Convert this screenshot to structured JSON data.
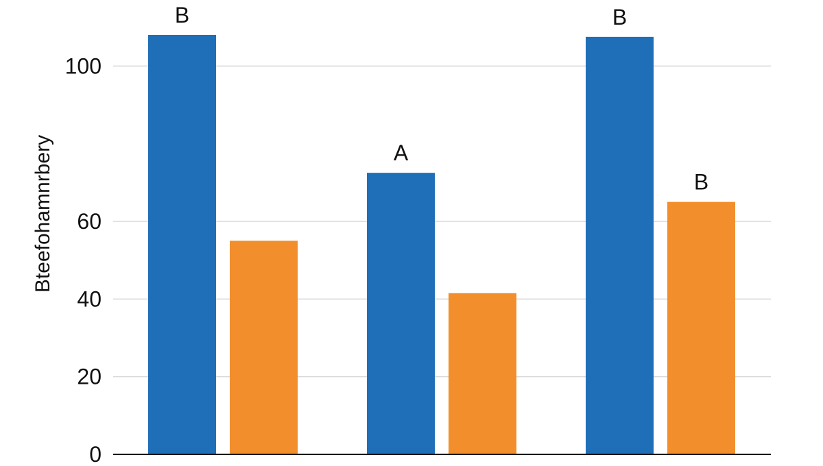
{
  "chart_data": {
    "type": "bar",
    "categories": [
      "",
      "",
      ""
    ],
    "series": [
      {
        "color": "#1f6fb8",
        "values": [
          108,
          72.5,
          107.5
        ],
        "labels": [
          "B",
          "A",
          "B"
        ]
      },
      {
        "color": "#f28e2c",
        "values": [
          55,
          41.5,
          65
        ],
        "labels": [
          "",
          "",
          "B"
        ]
      }
    ],
    "title": "",
    "xlabel": "",
    "ylabel": "Bteefohamnrbery",
    "ylim": [
      0,
      117
    ],
    "yticks": [
      0,
      20,
      40,
      60,
      100
    ],
    "grid": true,
    "legend": "none"
  }
}
